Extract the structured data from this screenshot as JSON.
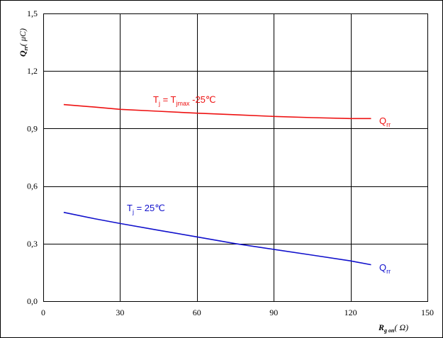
{
  "chart_data": {
    "type": "line",
    "xlabel_main": "R",
    "xlabel_sub": "g on",
    "xlabel_unit": "( Ω)",
    "ylabel_main": "Q",
    "ylabel_sub": "rr",
    "ylabel_unit": "( μC)",
    "xlim": [
      0,
      150
    ],
    "ylim": [
      0,
      1.5
    ],
    "x_ticks": [
      {
        "value": 0,
        "label": "0"
      },
      {
        "value": 30,
        "label": "30"
      },
      {
        "value": 60,
        "label": "60"
      },
      {
        "value": 90,
        "label": "90"
      },
      {
        "value": 120,
        "label": "120"
      },
      {
        "value": 150,
        "label": "150"
      }
    ],
    "y_ticks": [
      {
        "value": 0,
        "label": "0,0"
      },
      {
        "value": 0.3,
        "label": "0,3"
      },
      {
        "value": 0.6,
        "label": "0,6"
      },
      {
        "value": 0.9,
        "label": "0,9"
      },
      {
        "value": 1.2,
        "label": "1,2"
      },
      {
        "value": 1.5,
        "label": "1,5"
      }
    ],
    "grid": true,
    "series": [
      {
        "color": "#ee1111",
        "label": "Qrr",
        "condition": "Tj = Tjmax -25℃",
        "x": [
          8,
          20,
          30,
          45,
          60,
          75,
          90,
          105,
          120,
          128
        ],
        "y": [
          1.025,
          1.012,
          1.0,
          0.99,
          0.98,
          0.972,
          0.963,
          0.957,
          0.952,
          0.952
        ]
      },
      {
        "color": "#1111cc",
        "label": "Qrr",
        "condition": "Tj = 25℃",
        "x": [
          8,
          20,
          30,
          45,
          60,
          75,
          90,
          105,
          120,
          128
        ],
        "y": [
          0.463,
          0.43,
          0.405,
          0.37,
          0.335,
          0.3,
          0.27,
          0.24,
          0.21,
          0.19
        ]
      }
    ],
    "annotations": {
      "red_condition": {
        "T": "T",
        "j": "j",
        "eq": " = T",
        "jmax": "jmax",
        "rest": " -25℃"
      },
      "red_label": {
        "Q": "Q",
        "rr": "rr"
      },
      "blue_condition": {
        "T": "T",
        "j": "j",
        "rest": " = 25℃"
      },
      "blue_label": {
        "Q": "Q",
        "rr": "rr"
      }
    }
  }
}
